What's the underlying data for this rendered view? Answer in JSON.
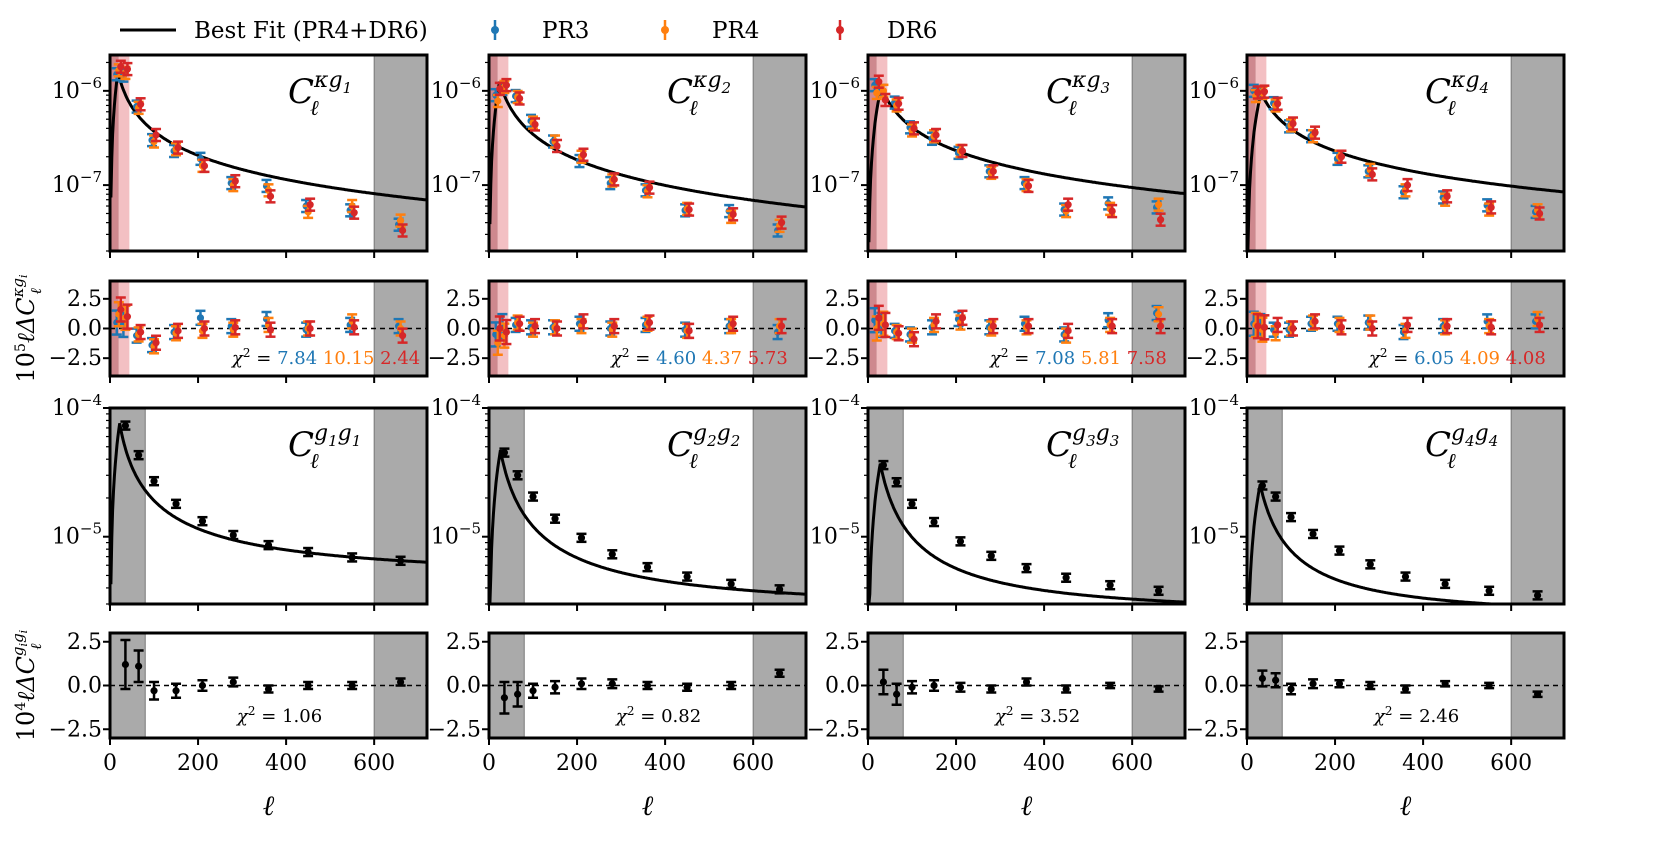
{
  "chart_data": {
    "type": "scatter",
    "legend": {
      "placement": "top",
      "entries": [
        {
          "key": "fit",
          "label": "Best Fit (PR4+DR6)",
          "color": "#000000"
        },
        {
          "key": "PR3",
          "label": "PR3",
          "color": "#1f77b4"
        },
        {
          "key": "PR4",
          "label": "PR4",
          "color": "#ff7f0e"
        },
        {
          "key": "DR6",
          "label": "DR6",
          "color": "#d62728"
        }
      ]
    },
    "xlabel": "ℓ",
    "xlim": [
      0,
      720
    ],
    "xticks": [
      0,
      200,
      400,
      600
    ],
    "cross_ylim": [
      2e-08,
      2.4e-06
    ],
    "cross_yticks": [
      {
        "value": 1e-06,
        "label": "10",
        "exp": "−6"
      },
      {
        "value": 1e-07,
        "label": "10",
        "exp": "−7"
      }
    ],
    "auto_ylim": [
      3e-06,
      0.0001
    ],
    "auto_yticks": [
      {
        "value": 0.0001,
        "label": "10",
        "exp": "−4"
      },
      {
        "value": 1e-05,
        "label": "10",
        "exp": "−5"
      }
    ],
    "cross_resid_ylim": [
      -4,
      4
    ],
    "cross_resid_yticks": [
      2.5,
      0.0,
      -2.5
    ],
    "cross_resid_yticklabels": [
      "2.5",
      "0.0",
      "−2.5"
    ],
    "auto_resid_ylim": [
      -3,
      3
    ],
    "auto_resid_yticks": [
      2.5,
      0.0,
      -2.5
    ],
    "auto_resid_yticklabels": [
      "2.5",
      "0.0",
      "−2.5"
    ],
    "ylabel_cross_resid": {
      "prefix": "10",
      "exp": "5",
      "mid": "ℓΔC",
      "sup": "κg",
      "supsub": "i",
      "sub": "ℓ"
    },
    "ylabel_auto_resid": {
      "prefix": "10",
      "exp": "4",
      "mid": "ℓΔC",
      "sup": "g",
      "supsub": "i",
      "sup2": "g",
      "supsub2": "i",
      "sub": "ℓ"
    },
    "ell_cross": [
      20,
      35,
      65,
      100,
      150,
      210,
      280,
      360,
      450,
      550,
      660
    ],
    "ell_auto": [
      35,
      65,
      100,
      150,
      210,
      280,
      360,
      450,
      550,
      660
    ],
    "masks": {
      "cross_low": [
        [
          0,
          20
        ],
        [
          20,
          44
        ]
      ],
      "auto_low": [
        0,
        80
      ],
      "high": [
        600,
        720
      ]
    },
    "bins": [
      {
        "cross_label": {
          "main": "C",
          "sub": "ℓ",
          "sup": "κg",
          "supsub": "1"
        },
        "auto_label": {
          "main": "C",
          "sub": "ℓ",
          "sup": "g",
          "supsub": "1",
          "sup2": "g",
          "supsub2": "1"
        },
        "cross_fit": {
          "peak": 1.6e-06,
          "ell_peak": 18,
          "pow": 0.85
        },
        "cross_points": {
          "PR3": [
            1.5e-06,
            1.45e-06,
            6.8e-07,
            3e-07,
            2.3e-07,
            1.9e-07,
            1.05e-07,
            9.8e-08,
            6e-08,
            5.4e-08,
            3.8e-08
          ],
          "PR4": [
            1.65e-06,
            1.55e-06,
            6.6e-07,
            2.9e-07,
            2.4e-07,
            1.6e-07,
            1e-07,
            8.8e-08,
            5.2e-08,
            6e-08,
            4.2e-08
          ],
          "DR6": [
            1.8e-06,
            1.7e-06,
            7.2e-07,
            3.4e-07,
            2.5e-07,
            1.6e-07,
            1.1e-07,
            7.6e-08,
            6.2e-08,
            5.1e-08,
            3.3e-08
          ]
        },
        "cross_resid": {
          "PR3": [
            0.5,
            0.3,
            -0.6,
            -1.4,
            -0.3,
            0.9,
            0.2,
            0.8,
            -0.1,
            0.3,
            0.2
          ],
          "PR4": [
            1.2,
            0.9,
            -0.5,
            -1.5,
            -0.4,
            -0.2,
            -0.1,
            0.3,
            0.0,
            0.6,
            0.0
          ],
          "DR6": [
            1.6,
            1.0,
            -0.3,
            -1.2,
            -0.2,
            0.0,
            0.1,
            -0.1,
            0.0,
            0.1,
            -0.6
          ]
        },
        "chi2_cross": {
          "PR3": "7.84",
          "PR4": "10.15",
          "DR6": "2.44"
        },
        "auto_fit": {
          "peak": 7.6e-05,
          "ell_peak": 22,
          "pow": 1.05,
          "floor": 4.5e-06
        },
        "auto_points": [
          7.3e-05,
          4.3e-05,
          2.7e-05,
          1.8e-05,
          1.32e-05,
          1.03e-05,
          8.6e-06,
          7.6e-06,
          6.9e-06,
          6.5e-06
        ],
        "auto_resid": [
          1.2,
          1.1,
          -0.3,
          -0.3,
          0.0,
          0.2,
          -0.2,
          0.0,
          0.0,
          0.2
        ],
        "auto_resid_err": [
          1.4,
          0.9,
          0.5,
          0.4,
          0.3,
          0.25,
          0.2,
          0.2,
          0.2,
          0.2
        ],
        "chi2_auto": "1.06"
      },
      {
        "cross_label": {
          "main": "C",
          "sub": "ℓ",
          "sup": "κg",
          "supsub": "2"
        },
        "auto_label": {
          "main": "C",
          "sub": "ℓ",
          "sup": "g",
          "supsub": "2",
          "sup2": "g",
          "supsub2": "2"
        },
        "cross_fit": {
          "peak": 1.25e-06,
          "ell_peak": 24,
          "pow": 0.9
        },
        "cross_points": {
          "PR3": [
            9e-07,
            1.05e-06,
            8.8e-07,
            4.8e-07,
            2.9e-07,
            1.8e-07,
            1.05e-07,
            8.8e-08,
            5.4e-08,
            5.3e-08,
            3.3e-08
          ],
          "PR4": [
            7.8e-07,
            1.1e-06,
            8.6e-07,
            4.6e-07,
            2.9e-07,
            2e-07,
            1.12e-07,
            8.6e-08,
            5.6e-08,
            4.6e-08,
            3.7e-08
          ],
          "DR6": [
            1.05e-06,
            1.15e-06,
            8.3e-07,
            4.4e-07,
            2.6e-07,
            2.1e-07,
            1.15e-07,
            9.4e-08,
            5.5e-08,
            4.9e-08,
            4e-08
          ]
        },
        "cross_resid": {
          "PR3": [
            -0.5,
            0.2,
            0.3,
            0.1,
            0.1,
            0.4,
            0.0,
            0.3,
            -0.1,
            0.2,
            -0.3
          ],
          "PR4": [
            -1.2,
            -0.6,
            0.5,
            -0.1,
            0.1,
            0.2,
            -0.1,
            0.4,
            -0.2,
            0.2,
            0.2
          ],
          "DR6": [
            0.0,
            -0.3,
            0.4,
            0.2,
            0.0,
            0.6,
            0.2,
            0.5,
            -0.2,
            0.4,
            0.2
          ]
        },
        "chi2_cross": {
          "PR3": "4.60",
          "PR4": "4.37",
          "DR6": "5.73"
        },
        "auto_fit": {
          "peak": 4.7e-05,
          "ell_peak": 26,
          "pow": 1.15,
          "floor": 2.6e-06
        },
        "auto_points": [
          4.5e-05,
          3e-05,
          2.05e-05,
          1.38e-05,
          9.8e-06,
          7.3e-06,
          5.8e-06,
          4.9e-06,
          4.3e-06,
          3.9e-06
        ],
        "auto_resid": [
          -0.7,
          -0.5,
          -0.3,
          -0.1,
          0.1,
          0.1,
          0.0,
          -0.1,
          0.0,
          0.7
        ],
        "auto_resid_err": [
          0.9,
          0.7,
          0.4,
          0.35,
          0.3,
          0.25,
          0.2,
          0.2,
          0.2,
          0.2
        ],
        "chi2_auto": "0.82"
      },
      {
        "cross_label": {
          "main": "C",
          "sub": "ℓ",
          "sup": "κg",
          "supsub": "3"
        },
        "auto_label": {
          "main": "C",
          "sub": "ℓ",
          "sup": "g",
          "supsub": "3",
          "sup2": "g",
          "supsub2": "3"
        },
        "cross_fit": {
          "peak": 1.1e-06,
          "ell_peak": 30,
          "pow": 0.82
        },
        "cross_points": {
          "PR3": [
            1.15e-06,
            1e-06,
            7.5e-07,
            4.1e-07,
            3.1e-07,
            2.2e-07,
            1.4e-07,
            1.05e-07,
            5.5e-08,
            6.4e-08,
            5.8e-08
          ],
          "PR4": [
            9.5e-07,
            1e-06,
            7e-07,
            3.8e-07,
            3.3e-07,
            2.3e-07,
            1.35e-07,
            1e-07,
            5.3e-08,
            5.6e-08,
            6.2e-08
          ],
          "DR6": [
            1.25e-06,
            8e-07,
            7.3e-07,
            4e-07,
            3.4e-07,
            2.3e-07,
            1.4e-07,
            9.8e-08,
            6.2e-08,
            5.3e-08,
            4.3e-08
          ]
        },
        "cross_resid": {
          "PR3": [
            0.7,
            0.3,
            -0.2,
            -0.5,
            0.1,
            0.8,
            0.1,
            0.4,
            -0.5,
            0.7,
            1.3
          ],
          "PR4": [
            0.0,
            0.4,
            -0.3,
            -0.6,
            0.3,
            0.5,
            0.0,
            0.1,
            -0.6,
            0.3,
            1.2
          ],
          "DR6": [
            0.9,
            0.3,
            -0.4,
            -0.9,
            0.6,
            0.9,
            0.2,
            0.2,
            -0.2,
            0.2,
            0.2
          ]
        },
        "chi2_cross": {
          "PR3": "7.08",
          "PR4": "5.81",
          "DR6": "7.58"
        },
        "auto_fit": {
          "peak": 3.7e-05,
          "ell_peak": 28,
          "pow": 1.2,
          "floor": 2.4e-06
        },
        "auto_points": [
          3.6e-05,
          2.65e-05,
          1.8e-05,
          1.3e-05,
          9.2e-06,
          7.1e-06,
          5.7e-06,
          4.8e-06,
          4.2e-06,
          3.8e-06
        ],
        "auto_resid": [
          0.2,
          -0.5,
          -0.1,
          0.0,
          -0.1,
          -0.2,
          0.2,
          -0.2,
          0.0,
          -0.2
        ],
        "auto_resid_err": [
          0.7,
          0.6,
          0.35,
          0.3,
          0.25,
          0.2,
          0.2,
          0.2,
          0.15,
          0.15
        ],
        "chi2_auto": "3.52"
      },
      {
        "cross_label": {
          "main": "C",
          "sub": "ℓ",
          "sup": "κg",
          "supsub": "4"
        },
        "auto_label": {
          "main": "C",
          "sub": "ℓ",
          "sup": "g",
          "supsub": "4",
          "sup2": "g",
          "supsub2": "4"
        },
        "cross_fit": {
          "peak": 9.6e-07,
          "ell_peak": 32,
          "pow": 0.78
        },
        "cross_points": {
          "PR3": [
            1e-06,
            9.5e-07,
            7.4e-07,
            4.2e-07,
            3.3e-07,
            1.9e-07,
            1.4e-07,
            8.4e-08,
            7.4e-08,
            6.1e-08,
            5.2e-08
          ],
          "PR4": [
            8.8e-07,
            9.5e-07,
            7e-07,
            4.3e-07,
            3.3e-07,
            2e-07,
            1.45e-07,
            8.8e-08,
            7e-08,
            5.5e-08,
            5.4e-08
          ],
          "DR6": [
            9.6e-07,
            9.8e-07,
            7.3e-07,
            4.5e-07,
            3.6e-07,
            2e-07,
            1.3e-07,
            1e-07,
            7.6e-08,
            5.8e-08,
            5e-08
          ]
        },
        "cross_resid": {
          "PR3": [
            0.4,
            0.2,
            -0.1,
            -0.1,
            0.4,
            0.4,
            0.5,
            -0.3,
            0.2,
            0.6,
            0.6
          ],
          "PR4": [
            0.3,
            -0.1,
            -0.4,
            0.0,
            0.5,
            0.3,
            0.5,
            -0.2,
            0.1,
            0.2,
            0.8
          ],
          "DR6": [
            0.2,
            0.1,
            0.3,
            0.0,
            0.6,
            0.1,
            0.0,
            0.3,
            0.2,
            0.1,
            0.3
          ]
        },
        "chi2_cross": {
          "PR3": "6.05",
          "PR4": "4.09",
          "DR6": "4.08"
        },
        "auto_fit": {
          "peak": 2.55e-05,
          "ell_peak": 30,
          "pow": 1.2,
          "floor": 2.3e-06
        },
        "auto_points": [
          2.5e-05,
          2.05e-05,
          1.42e-05,
          1.05e-05,
          7.8e-06,
          6.1e-06,
          4.9e-06,
          4.3e-06,
          3.8e-06,
          3.5e-06
        ],
        "auto_resid": [
          0.4,
          0.3,
          -0.2,
          0.1,
          0.1,
          0.0,
          -0.2,
          0.1,
          0.0,
          -0.5
        ],
        "auto_resid_err": [
          0.45,
          0.4,
          0.3,
          0.25,
          0.2,
          0.2,
          0.2,
          0.15,
          0.15,
          0.15
        ],
        "chi2_auto": "2.46"
      }
    ]
  }
}
